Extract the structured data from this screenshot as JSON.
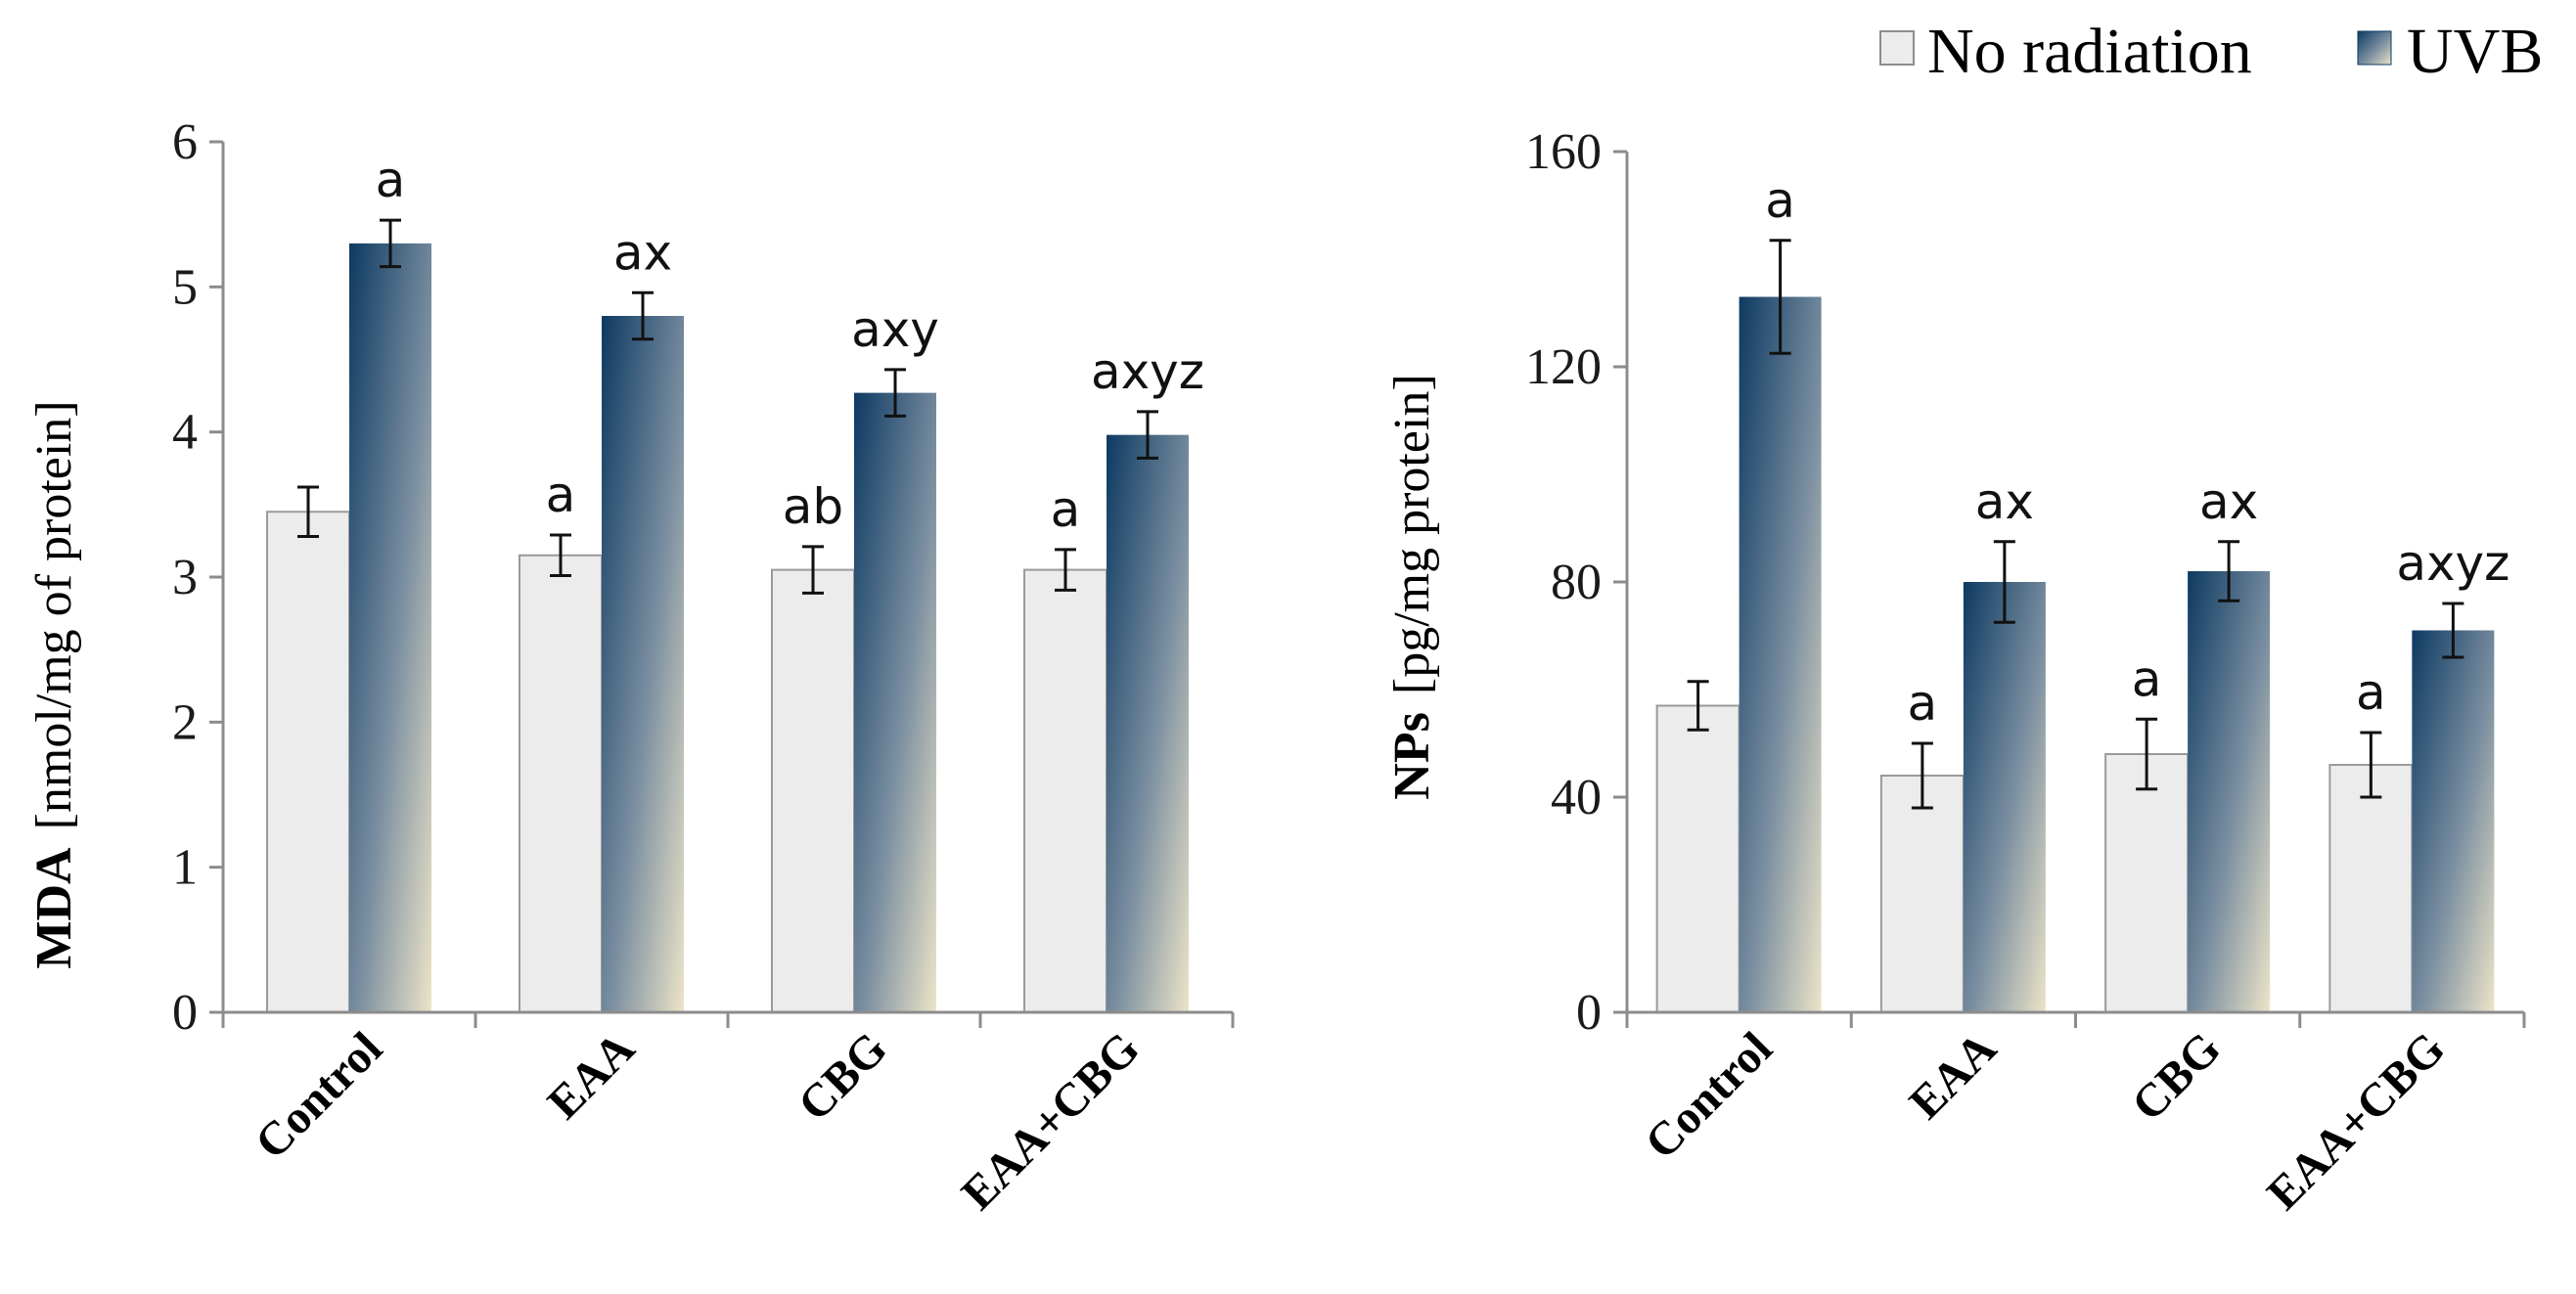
{
  "legend": [
    {
      "label": "No radiation"
    },
    {
      "label": "UVB"
    }
  ],
  "colors": {
    "no_radiation_fill": "#ececec",
    "no_radiation_stroke": "#9a9a9a",
    "uvb_dark": "#0d3a62",
    "uvb_mid": "#7a8ea0",
    "uvb_light": "#ece4c8",
    "axis": "#8c8c8c"
  },
  "chart_data": [
    {
      "type": "bar",
      "ylabel_bold": "MDA",
      "ylabel_unit": "[nmol/mg of protein]",
      "categories": [
        "Control",
        "EAA",
        "CBG",
        "EAA+CBG"
      ],
      "ylim": [
        0,
        6
      ],
      "yticks": [
        0,
        1,
        2,
        3,
        4,
        5,
        6
      ],
      "series": [
        {
          "name": "No radiation",
          "values": [
            3.45,
            3.15,
            3.05,
            3.05
          ],
          "errors": [
            0.17,
            0.14,
            0.16,
            0.14
          ],
          "labels": [
            "",
            "a",
            "ab",
            "a"
          ]
        },
        {
          "name": "UVB",
          "values": [
            5.3,
            4.8,
            4.27,
            3.98
          ],
          "errors": [
            0.16,
            0.16,
            0.16,
            0.16
          ],
          "labels": [
            "a",
            "ax",
            "axy",
            "axyz"
          ]
        }
      ]
    },
    {
      "type": "bar",
      "ylabel_bold": "NPs",
      "ylabel_unit": "[pg/mg protein]",
      "categories": [
        "Control",
        "EAA",
        "CBG",
        "EAA+CBG"
      ],
      "ylim": [
        0,
        160
      ],
      "yticks": [
        0,
        40,
        80,
        120,
        160
      ],
      "series": [
        {
          "name": "No radiation",
          "values": [
            57,
            44,
            48,
            46
          ],
          "errors": [
            4.5,
            6,
            6.5,
            6
          ],
          "labels": [
            "",
            "a",
            "a",
            "a"
          ]
        },
        {
          "name": "UVB",
          "values": [
            133,
            80,
            82,
            71
          ],
          "errors": [
            10.5,
            7.5,
            5.5,
            5
          ],
          "labels": [
            "a",
            "ax",
            "ax",
            "axyz"
          ]
        }
      ]
    }
  ]
}
